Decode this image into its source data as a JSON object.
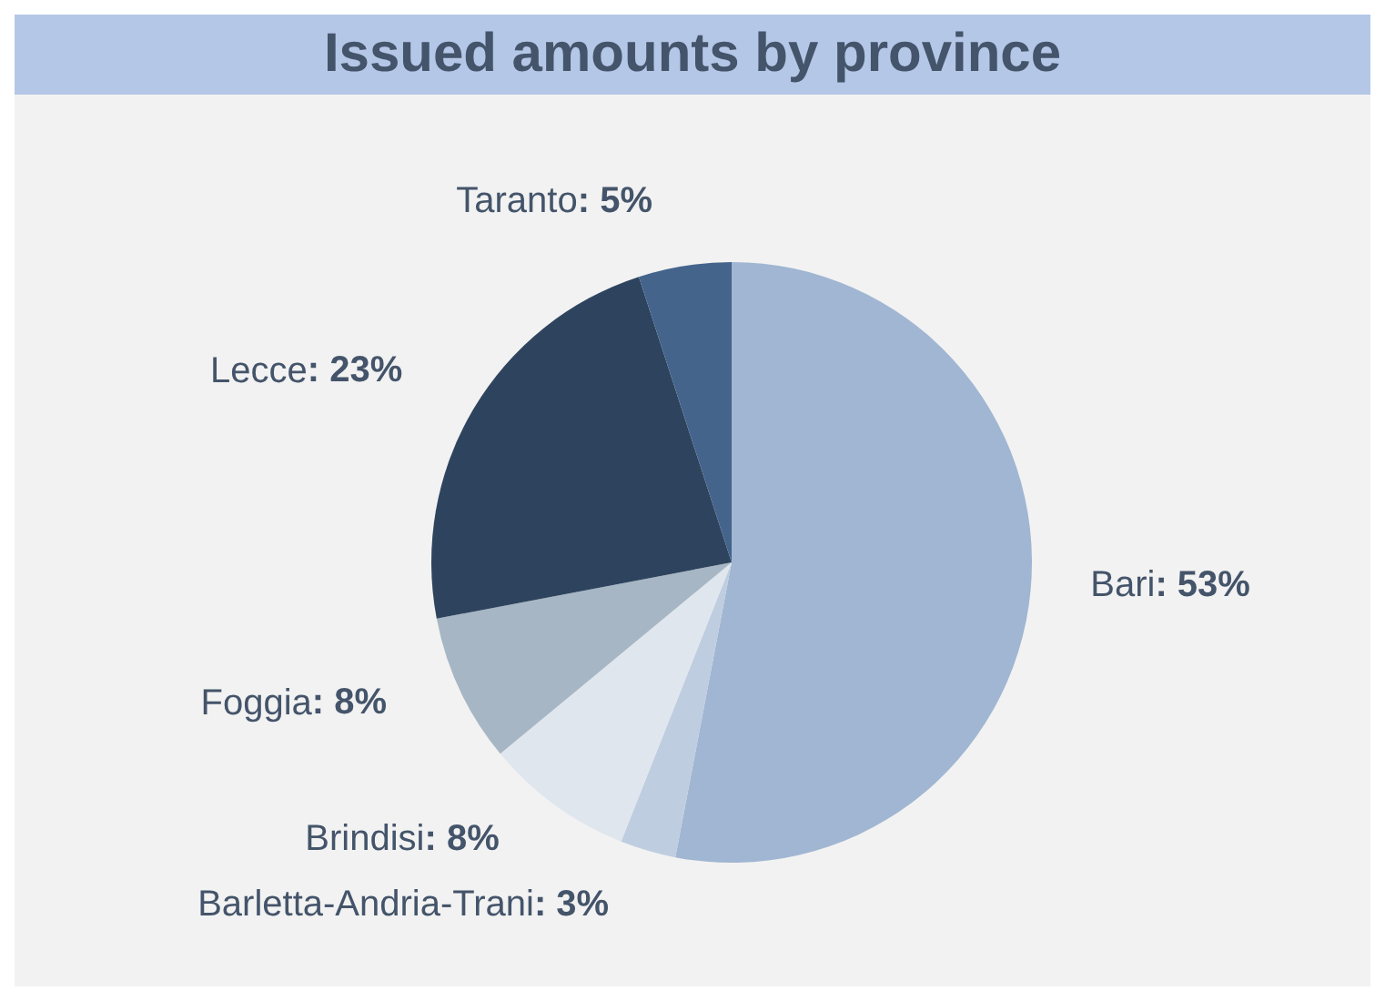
{
  "chart_data": {
    "type": "pie",
    "title": "Issued amounts by province",
    "categories": [
      "Bari",
      "Barletta-Andria-Trani",
      "Brindisi",
      "Foggia",
      "Lecce",
      "Taranto"
    ],
    "values": [
      53,
      3,
      8,
      8,
      23,
      5
    ],
    "value_labels": [
      ": 53%",
      ": 3%",
      ": 8%",
      ": 8%",
      ": 23%",
      ": 5%"
    ],
    "colors": [
      "#a0b6d2",
      "#bfcde0",
      "#dfe6ee",
      "#a6b6c4",
      "#2e445e",
      "#44648c"
    ]
  }
}
